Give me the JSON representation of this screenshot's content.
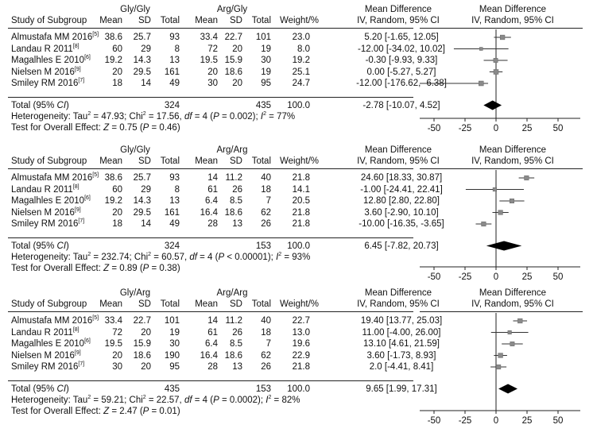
{
  "panels": [
    {
      "group1": "Gly/Gly",
      "group2": "Arg/Gly",
      "header": {
        "study": "Study of Subgroup",
        "mean1": "Mean",
        "sd1": "SD",
        "total1": "Total",
        "mean2": "Mean",
        "sd2": "SD",
        "total2": "Total",
        "weight": "Weight/%",
        "md_title": "Mean Difference",
        "md_sub": "IV, Random, 95% CI",
        "plot_title": "Mean Difference",
        "plot_sub": "IV, Random, 95% CI"
      },
      "rows": [
        {
          "study": "Almustafa MM 2016",
          "ref": "[5]",
          "mean1": "38.6",
          "sd1": "25.7",
          "total1": "93",
          "mean2": "33.4",
          "sd2": "22.7",
          "total2": "101",
          "weight": "23.0",
          "ci": "5.20 [-1.65, 12.05]"
        },
        {
          "study": "Landau R 2011",
          "ref": "[8]",
          "mean1": "60",
          "sd1": "29",
          "total1": "8",
          "mean2": "72",
          "sd2": "20",
          "total2": "19",
          "weight": "8.0",
          "ci": "-12.00 [-34.02, 10.02]"
        },
        {
          "study": "Magalhles E 2010",
          "ref": "[6]",
          "mean1": "19.2",
          "sd1": "14.3",
          "total1": "13",
          "mean2": "19.5",
          "sd2": "15.9",
          "total2": "30",
          "weight": "19.2",
          "ci": "-0.30 [-9.93, 9.33]"
        },
        {
          "study": "Nielsen M 2016",
          "ref": "[9]",
          "mean1": "20",
          "sd1": "29.5",
          "total1": "161",
          "mean2": "20",
          "sd2": "18.6",
          "total2": "19",
          "weight": "25.1",
          "ci": "0.00 [-5.27, 5.27]"
        },
        {
          "study": "Smiley RM 2016",
          "ref": "[7]",
          "mean1": "18",
          "sd1": "14",
          "total1": "49",
          "mean2": "30",
          "sd2": "20",
          "total2": "95",
          "weight": "24.7",
          "ci": "-12.00 [-176.62, -6.38]"
        }
      ],
      "total": {
        "label_pre": "Total (95% ",
        "label_it": "CI",
        "label_post": ")",
        "total1": "324",
        "total2": "435",
        "weight": "100.0",
        "ci": "-2.78 [-10.07, 4.52]"
      },
      "heterogeneity": {
        "a": "Heterogeneity: Tau",
        "b": "2",
        "c": " = 47.93; Chi",
        "d": "2",
        "e": " = 17.56, ",
        "f": "df",
        "g": " = 4 (",
        "h": "P",
        "i": " = 0.002); ",
        "j": "I",
        "k": "2",
        "l": " = 77%"
      },
      "overall": {
        "a": "Test for Overall Effect:  ",
        "b": "Z",
        "c": " = 0.75 (",
        "d": "P",
        "e": " = 0.46)"
      }
    },
    {
      "group1": "Gly/Gly",
      "group2": "Arg/Arg",
      "header": {
        "study": "Study of Subgroup",
        "mean1": "Mean",
        "sd1": "SD",
        "total1": "Total",
        "mean2": "Mean",
        "sd2": "SD",
        "total2": "Total",
        "weight": "Weight/%",
        "md_title": "Mean Difference",
        "md_sub": "IV, Random, 95% CI",
        "plot_title": "Mean Difference",
        "plot_sub": "IV, Random, 95% CI"
      },
      "rows": [
        {
          "study": "Almustafa MM 2016",
          "ref": "[5]",
          "mean1": "38.6",
          "sd1": "25.7",
          "total1": "93",
          "mean2": "14",
          "sd2": "11.2",
          "total2": "40",
          "weight": "21.8",
          "ci": "24.60 [18.33, 30.87]"
        },
        {
          "study": "Landau R 2011",
          "ref": "[8]",
          "mean1": "60",
          "sd1": "29",
          "total1": "8",
          "mean2": "61",
          "sd2": "26",
          "total2": "18",
          "weight": "14.1",
          "ci": "-1.00 [-24.41, 22.41]"
        },
        {
          "study": "Magalhles E 2010",
          "ref": "[6]",
          "mean1": "19.2",
          "sd1": "14.3",
          "total1": "13",
          "mean2": "6.4",
          "sd2": "8.5",
          "total2": "7",
          "weight": "20.5",
          "ci": "12.80 [2.80, 22.80]"
        },
        {
          "study": "Nielsen M 2016",
          "ref": "[9]",
          "mean1": "20",
          "sd1": "29.5",
          "total1": "161",
          "mean2": "16.4",
          "sd2": "18.6",
          "total2": "62",
          "weight": "21.8",
          "ci": "3.60 [-2.90, 10.10]"
        },
        {
          "study": "Smiley RM 2016",
          "ref": "[7]",
          "mean1": "18",
          "sd1": "14",
          "total1": "49",
          "mean2": "28",
          "sd2": "13",
          "total2": "26",
          "weight": "21.8",
          "ci": "-10.00 [-16.35, -3.65]"
        }
      ],
      "total": {
        "label_pre": "Total (95% ",
        "label_it": "CI",
        "label_post": ")",
        "total1": "324",
        "total2": "153",
        "weight": "100.0",
        "ci": "6.45 [-7.82, 20.73]"
      },
      "heterogeneity": {
        "a": "Heterogeneity: Tau",
        "b": "2",
        "c": " = 232.74; Chi",
        "d": "2",
        "e": " = 60.57, ",
        "f": "df",
        "g": " = 4 (",
        "h": "P",
        "i": " < 0.00001); ",
        "j": "I",
        "k": "2",
        "l": " = 93%"
      },
      "overall": {
        "a": "Test for Overall Effect:  ",
        "b": "Z",
        "c": " = 0.89 (",
        "d": "P",
        "e": " = 0.38)"
      }
    },
    {
      "group1": "Gly/Arg",
      "group2": "Arg/Arg",
      "header": {
        "study": "Study of Subgroup",
        "mean1": "Mean",
        "sd1": "SD",
        "total1": "Total",
        "mean2": "Mean",
        "sd2": "SD",
        "total2": "Total",
        "weight": "Weight/%",
        "md_title": "Mean Difference",
        "md_sub": "IV, Random, 95% CI",
        "plot_title": "Mean Difference",
        "plot_sub": "IV, Random, 95% CI"
      },
      "rows": [
        {
          "study": "Almustafa MM 2016",
          "ref": "[5]",
          "mean1": "33.4",
          "sd1": "22.7",
          "total1": "101",
          "mean2": "14",
          "sd2": "11.2",
          "total2": "40",
          "weight": "22.7",
          "ci": "19.40 [13.77, 25.03]"
        },
        {
          "study": "Landau R 2011",
          "ref": "[8]",
          "mean1": "72",
          "sd1": "20",
          "total1": "19",
          "mean2": "61",
          "sd2": "26",
          "total2": "18",
          "weight": "13.0",
          "ci": "11.00 [-4.00, 26.00]"
        },
        {
          "study": "Magalhles E 2010",
          "ref": "[6]",
          "mean1": "19.5",
          "sd1": "15.9",
          "total1": "30",
          "mean2": "6.4",
          "sd2": "8.5",
          "total2": "7",
          "weight": "19.6",
          "ci": "13.10 [4.61, 21.59]"
        },
        {
          "study": "Nielsen M 2016",
          "ref": "[9]",
          "mean1": "20",
          "sd1": "18.6",
          "total1": "190",
          "mean2": "16.4",
          "sd2": "18.6",
          "total2": "62",
          "weight": "22.9",
          "ci": "3.60 [-1.73, 8.93]"
        },
        {
          "study": "Smiley RM 2016",
          "ref": "[7]",
          "mean1": "30",
          "sd1": "20",
          "total1": "95",
          "mean2": "28",
          "sd2": "13",
          "total2": "26",
          "weight": "21.8",
          "ci": "2.0 [-4.41, 8.41]"
        }
      ],
      "total": {
        "label_pre": "Total (95% ",
        "label_it": "CI",
        "label_post": ")",
        "total1": "435",
        "total2": "153",
        "weight": "100.0",
        "ci": "9.65 [1.99, 17.31]"
      },
      "heterogeneity": {
        "a": "Heterogeneity: Tau",
        "b": "2",
        "c": " = 59.21; Chi",
        "d": "2",
        "e": " = 22.57, ",
        "f": "df",
        "g": " = 4 (",
        "h": "P",
        "i": " = 0.0002); ",
        "j": "I",
        "k": "2",
        "l": " = 82%"
      },
      "overall": {
        "a": "Test for Overall Effect:  ",
        "b": "Z",
        "c": " = 2.47 (",
        "d": "P",
        "e": " = 0.01)"
      }
    }
  ],
  "chart_data": [
    {
      "type": "forest",
      "comparison": [
        "Gly/Gly",
        "Arg/Gly"
      ],
      "studies": [
        "Almustafa MM 2016",
        "Landau R 2011",
        "Magalhles E 2010",
        "Nielsen M 2016",
        "Smiley RM 2016"
      ],
      "estimates": [
        5.2,
        -12.0,
        -0.3,
        0.0,
        -12.0
      ],
      "ci_low": [
        -1.65,
        -34.02,
        -9.93,
        -5.27,
        -176.62
      ],
      "ci_high": [
        12.05,
        10.02,
        9.33,
        5.27,
        -6.38
      ],
      "weights": [
        23.0,
        8.0,
        19.2,
        25.1,
        24.7
      ],
      "pooled": {
        "estimate": -2.78,
        "ci_low": -10.07,
        "ci_high": 4.52
      },
      "xticks": [
        -50,
        -25,
        0,
        25,
        50
      ],
      "xlim": [
        -62,
        68
      ]
    },
    {
      "type": "forest",
      "comparison": [
        "Gly/Gly",
        "Arg/Arg"
      ],
      "studies": [
        "Almustafa MM 2016",
        "Landau R 2011",
        "Magalhles E 2010",
        "Nielsen M 2016",
        "Smiley RM 2016"
      ],
      "estimates": [
        24.6,
        -1.0,
        12.8,
        3.6,
        -10.0
      ],
      "ci_low": [
        18.33,
        -24.41,
        2.8,
        -2.9,
        -16.35
      ],
      "ci_high": [
        30.87,
        22.41,
        22.8,
        10.1,
        -3.65
      ],
      "weights": [
        21.8,
        14.1,
        20.5,
        21.8,
        21.8
      ],
      "pooled": {
        "estimate": 6.45,
        "ci_low": -7.82,
        "ci_high": 20.73
      },
      "xticks": [
        -50,
        -25,
        0,
        25,
        50
      ],
      "xlim": [
        -62,
        62
      ]
    },
    {
      "type": "forest",
      "comparison": [
        "Gly/Arg",
        "Arg/Arg"
      ],
      "studies": [
        "Almustafa MM 2016",
        "Landau R 2011",
        "Magalhles E 2010",
        "Nielsen M 2016",
        "Smiley RM 2016"
      ],
      "estimates": [
        19.4,
        11.0,
        13.1,
        3.6,
        2.0
      ],
      "ci_low": [
        13.77,
        -4.0,
        4.61,
        -1.73,
        -4.41
      ],
      "ci_high": [
        25.03,
        26.0,
        21.59,
        8.93,
        8.41
      ],
      "weights": [
        22.7,
        13.0,
        19.6,
        22.9,
        21.8
      ],
      "pooled": {
        "estimate": 9.65,
        "ci_low": 1.99,
        "ci_high": 17.31
      },
      "xticks": [
        -50,
        -25,
        0,
        25,
        50
      ],
      "xlim": [
        -63,
        67
      ]
    }
  ]
}
